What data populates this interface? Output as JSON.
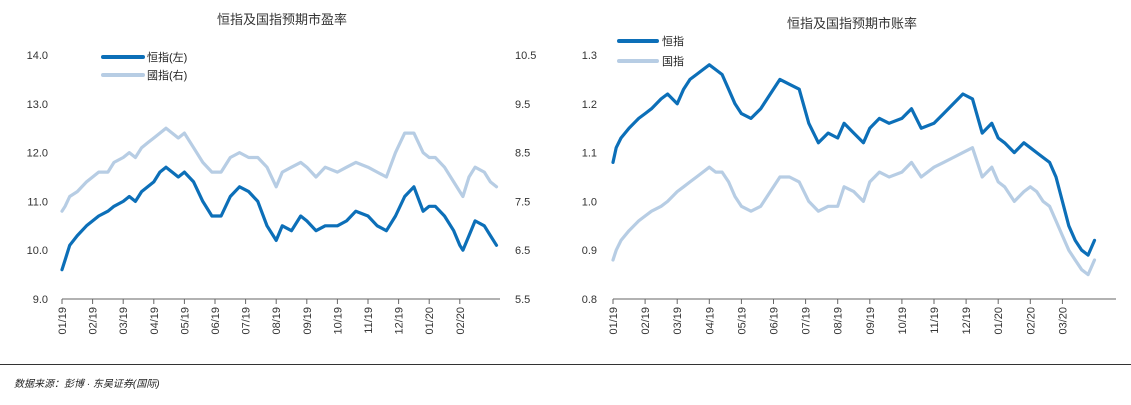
{
  "colors": {
    "dark": "#0c6fb8",
    "light": "#b7cde4"
  },
  "source": "数据来源：彭博 · 东吴证券(国际)",
  "chart_data": [
    {
      "type": "line",
      "title": "恒指及国指预期市盈率",
      "categories": [
        "01/19",
        "02/19",
        "03/19",
        "04/19",
        "05/19",
        "06/19",
        "07/19",
        "08/19",
        "09/19",
        "10/19",
        "11/19",
        "12/19",
        "01/20",
        "02/20"
      ],
      "y_left": {
        "ticks": [
          "9.0",
          "10.0",
          "11.0",
          "12.0",
          "13.0",
          "14.0"
        ],
        "ylim": [
          9.0,
          14.0
        ]
      },
      "y_right": {
        "ticks": [
          "5.5",
          "6.5",
          "7.5",
          "8.5",
          "9.5",
          "10.5"
        ],
        "ylim": [
          5.5,
          10.5
        ]
      },
      "series": [
        {
          "name": "恒指(左)",
          "axis": "left",
          "color": "dark",
          "x": [
            0,
            0.1,
            0.25,
            0.5,
            0.8,
            1.0,
            1.2,
            1.5,
            1.7,
            2.0,
            2.2,
            2.4,
            2.6,
            2.8,
            3.0,
            3.2,
            3.4,
            3.6,
            3.8,
            4.0,
            4.3,
            4.6,
            4.9,
            5.2,
            5.5,
            5.8,
            6.1,
            6.4,
            6.7,
            7.0,
            7.2,
            7.5,
            7.8,
            8.0,
            8.3,
            8.6,
            9.0,
            9.3,
            9.6,
            10.0,
            10.3,
            10.6,
            10.9,
            11.2,
            11.5,
            11.8,
            12.0,
            12.2,
            12.5,
            12.8,
            13.0,
            13.1,
            13.3,
            13.5,
            13.8,
            14.0,
            14.2
          ],
          "values": [
            9.6,
            9.8,
            10.1,
            10.3,
            10.5,
            10.6,
            10.7,
            10.8,
            10.9,
            11.0,
            11.1,
            11.0,
            11.2,
            11.3,
            11.4,
            11.6,
            11.7,
            11.6,
            11.5,
            11.6,
            11.4,
            11.0,
            10.7,
            10.7,
            11.1,
            11.3,
            11.2,
            11.0,
            10.5,
            10.2,
            10.5,
            10.4,
            10.7,
            10.6,
            10.4,
            10.5,
            10.5,
            10.6,
            10.8,
            10.7,
            10.5,
            10.4,
            10.7,
            11.1,
            11.3,
            10.8,
            10.9,
            10.9,
            10.7,
            10.4,
            10.1,
            10.0,
            10.3,
            10.6,
            10.5,
            10.3,
            10.1
          ]
        },
        {
          "name": "國指(右)",
          "axis": "right",
          "color": "light",
          "x": [
            0,
            0.1,
            0.25,
            0.5,
            0.8,
            1.0,
            1.2,
            1.5,
            1.7,
            2.0,
            2.2,
            2.4,
            2.6,
            2.8,
            3.0,
            3.2,
            3.4,
            3.6,
            3.8,
            4.0,
            4.3,
            4.6,
            4.9,
            5.2,
            5.5,
            5.8,
            6.1,
            6.4,
            6.7,
            7.0,
            7.2,
            7.5,
            7.8,
            8.0,
            8.3,
            8.6,
            9.0,
            9.3,
            9.6,
            10.0,
            10.3,
            10.6,
            10.9,
            11.2,
            11.5,
            11.8,
            12.0,
            12.2,
            12.5,
            12.8,
            13.0,
            13.1,
            13.3,
            13.5,
            13.8,
            14.0,
            14.2
          ],
          "values": [
            7.3,
            7.4,
            7.6,
            7.7,
            7.9,
            8.0,
            8.1,
            8.1,
            8.3,
            8.4,
            8.5,
            8.4,
            8.6,
            8.7,
            8.8,
            8.9,
            9.0,
            8.9,
            8.8,
            8.9,
            8.6,
            8.3,
            8.1,
            8.1,
            8.4,
            8.5,
            8.4,
            8.4,
            8.2,
            7.8,
            8.1,
            8.2,
            8.3,
            8.2,
            8.0,
            8.2,
            8.1,
            8.2,
            8.3,
            8.2,
            8.1,
            8.0,
            8.5,
            8.9,
            8.9,
            8.5,
            8.4,
            8.4,
            8.2,
            7.9,
            7.7,
            7.6,
            8.0,
            8.2,
            8.1,
            7.9,
            7.8
          ]
        }
      ]
    },
    {
      "type": "line",
      "title": "恒指及国指预期市账率",
      "categories": [
        "01/19",
        "02/19",
        "03/19",
        "04/19",
        "05/19",
        "06/19",
        "07/19",
        "08/19",
        "09/19",
        "10/19",
        "11/19",
        "12/19",
        "01/20",
        "02/20",
        "03/20"
      ],
      "y_left": {
        "ticks": [
          "0.8",
          "0.9",
          "1.0",
          "1.1",
          "1.2",
          "1.3"
        ],
        "ylim": [
          0.8,
          1.3
        ]
      },
      "series": [
        {
          "name": "恒指",
          "axis": "left",
          "color": "dark",
          "x": [
            0,
            0.1,
            0.25,
            0.5,
            0.8,
            1.0,
            1.2,
            1.5,
            1.7,
            2.0,
            2.2,
            2.4,
            2.6,
            2.8,
            3.0,
            3.2,
            3.4,
            3.6,
            3.8,
            4.0,
            4.3,
            4.6,
            4.9,
            5.2,
            5.5,
            5.8,
            6.1,
            6.4,
            6.7,
            7.0,
            7.2,
            7.5,
            7.8,
            8.0,
            8.3,
            8.6,
            9.0,
            9.3,
            9.6,
            10.0,
            10.3,
            10.6,
            10.9,
            11.2,
            11.5,
            11.8,
            12.0,
            12.2,
            12.5,
            12.8,
            13.0,
            13.2,
            13.4,
            13.6,
            13.8,
            14.0,
            14.2,
            14.4,
            14.6,
            14.8,
            15.0
          ],
          "values": [
            1.08,
            1.11,
            1.13,
            1.15,
            1.17,
            1.18,
            1.19,
            1.21,
            1.22,
            1.2,
            1.23,
            1.25,
            1.26,
            1.27,
            1.28,
            1.27,
            1.26,
            1.23,
            1.2,
            1.18,
            1.17,
            1.19,
            1.22,
            1.25,
            1.24,
            1.23,
            1.16,
            1.12,
            1.14,
            1.13,
            1.16,
            1.14,
            1.12,
            1.15,
            1.17,
            1.16,
            1.17,
            1.19,
            1.15,
            1.16,
            1.18,
            1.2,
            1.22,
            1.21,
            1.14,
            1.16,
            1.13,
            1.12,
            1.1,
            1.12,
            1.11,
            1.1,
            1.09,
            1.08,
            1.05,
            1.0,
            0.95,
            0.92,
            0.9,
            0.89,
            0.92
          ]
        },
        {
          "name": "国指",
          "axis": "left",
          "color": "light",
          "x": [
            0,
            0.1,
            0.25,
            0.5,
            0.8,
            1.0,
            1.2,
            1.5,
            1.7,
            2.0,
            2.2,
            2.4,
            2.6,
            2.8,
            3.0,
            3.2,
            3.4,
            3.6,
            3.8,
            4.0,
            4.3,
            4.6,
            4.9,
            5.2,
            5.5,
            5.8,
            6.1,
            6.4,
            6.7,
            7.0,
            7.2,
            7.5,
            7.8,
            8.0,
            8.3,
            8.6,
            9.0,
            9.3,
            9.6,
            10.0,
            10.3,
            10.6,
            10.9,
            11.2,
            11.5,
            11.8,
            12.0,
            12.2,
            12.5,
            12.8,
            13.0,
            13.2,
            13.4,
            13.6,
            13.8,
            14.0,
            14.2,
            14.4,
            14.6,
            14.8,
            15.0
          ],
          "values": [
            0.88,
            0.9,
            0.92,
            0.94,
            0.96,
            0.97,
            0.98,
            0.99,
            1.0,
            1.02,
            1.03,
            1.04,
            1.05,
            1.06,
            1.07,
            1.06,
            1.06,
            1.04,
            1.01,
            0.99,
            0.98,
            0.99,
            1.02,
            1.05,
            1.05,
            1.04,
            1.0,
            0.98,
            0.99,
            0.99,
            1.03,
            1.02,
            1.0,
            1.04,
            1.06,
            1.05,
            1.06,
            1.08,
            1.05,
            1.07,
            1.08,
            1.09,
            1.1,
            1.11,
            1.05,
            1.07,
            1.04,
            1.03,
            1.0,
            1.02,
            1.03,
            1.02,
            1.0,
            0.99,
            0.96,
            0.93,
            0.9,
            0.88,
            0.86,
            0.85,
            0.88
          ]
        }
      ]
    }
  ]
}
